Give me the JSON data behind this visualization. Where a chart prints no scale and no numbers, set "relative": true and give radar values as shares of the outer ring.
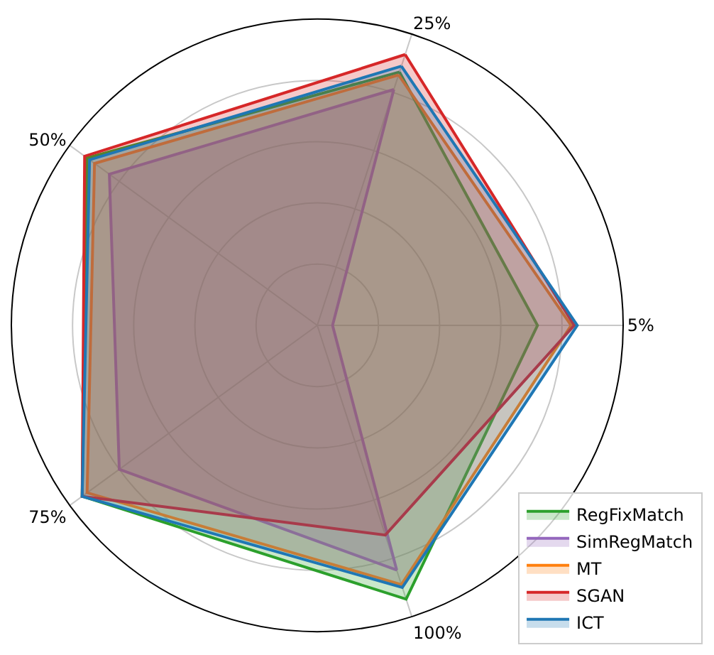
{
  "chart_data": {
    "type": "radar",
    "relative": true,
    "categories": [
      "25%",
      "5%",
      "100%",
      "75%",
      "50%"
    ],
    "legend": "bottom right",
    "grid": true,
    "series": [
      {
        "name": "RegFixMatch",
        "color": "#2ca02c",
        "values": [
          0.87,
          0.72,
          0.94,
          0.95,
          0.93
        ]
      },
      {
        "name": "SimRegMatch",
        "color": "#9467bd",
        "values": [
          0.81,
          0.05,
          0.84,
          0.8,
          0.84
        ]
      },
      {
        "name": "MT",
        "color": "#ff7f0e",
        "values": [
          0.86,
          0.83,
          0.89,
          0.93,
          0.9
        ]
      },
      {
        "name": "SGAN",
        "color": "#d62728",
        "values": [
          0.93,
          0.84,
          0.72,
          0.95,
          0.94
        ]
      },
      {
        "name": "ICT",
        "color": "#1f77b4",
        "values": [
          0.89,
          0.85,
          0.9,
          0.95,
          0.92
        ]
      }
    ]
  }
}
